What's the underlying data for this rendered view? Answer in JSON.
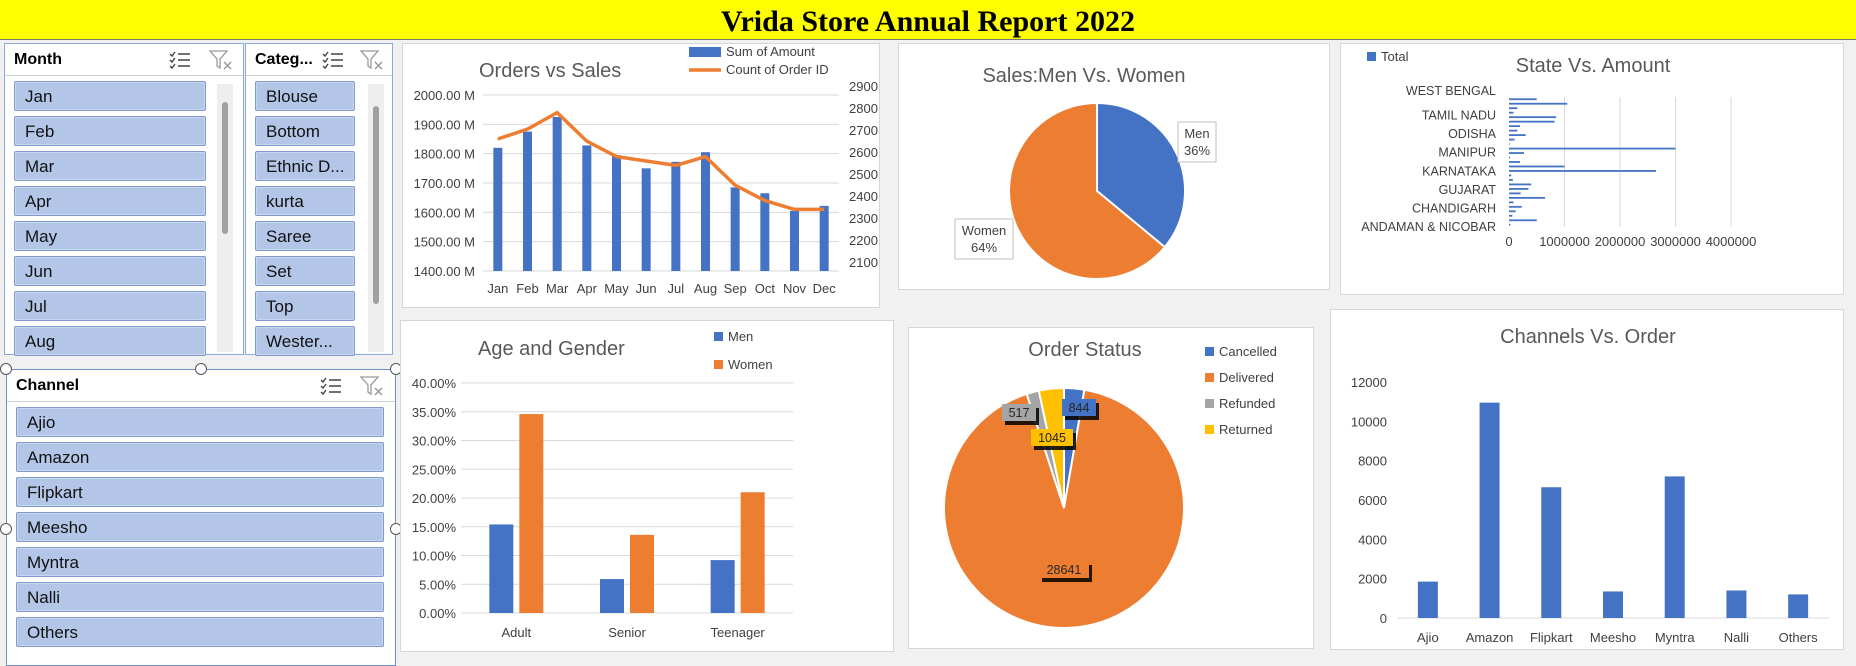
{
  "report": {
    "title": "Vrida Store Annual Report 2022"
  },
  "slicers": {
    "month": {
      "title": "Month",
      "items": [
        "Jan",
        "Feb",
        "Mar",
        "Apr",
        "May",
        "Jun",
        "Jul",
        "Aug"
      ]
    },
    "category": {
      "title": "Categ...",
      "items": [
        "Blouse",
        "Bottom",
        "Ethnic D...",
        "kurta",
        "Saree",
        "Set",
        "Top",
        "Wester..."
      ]
    },
    "channel": {
      "title": "Channel",
      "items": [
        "Ajio",
        "Amazon",
        "Flipkart",
        "Meesho",
        "Myntra",
        "Nalli",
        "Others"
      ]
    }
  },
  "icons": {
    "multi_select": "multi-select-icon",
    "clear_filter": "clear-filter-icon"
  },
  "colors": {
    "banner": "#ffff00",
    "blue": "#4472c4",
    "orange": "#ed7d31",
    "gray": "#a5a5a5",
    "yellow": "#ffc000",
    "slicer_item": "#b4c6e7"
  },
  "chart_data": [
    {
      "id": "orders-vs-sales",
      "type": "bar",
      "title": "Orders vs Sales",
      "categories": [
        "Jan",
        "Feb",
        "Mar",
        "Apr",
        "May",
        "Jun",
        "Jul",
        "Aug",
        "Sep",
        "Oct",
        "Nov",
        "Dec"
      ],
      "series": [
        {
          "name": "Sum of Amount",
          "type": "bar",
          "axis": "left",
          "values": [
            1820,
            1875,
            1925,
            1828,
            1795,
            1750,
            1772,
            1805,
            1685,
            1665,
            1605,
            1622
          ]
        },
        {
          "name": "Count of Order ID",
          "type": "line",
          "axis": "right",
          "values": [
            2700,
            2745,
            2820,
            2690,
            2620,
            2600,
            2580,
            2620,
            2490,
            2420,
            2380,
            2380
          ]
        }
      ],
      "ylim": [
        1400,
        2000
      ],
      "yticks": [
        "2000.00 M",
        "1900.00 M",
        "1800.00 M",
        "1700.00 M",
        "1600.00 M",
        "1500.00 M",
        "1400.00 M"
      ],
      "y2lim": [
        2100,
        2900
      ],
      "y2ticks": [
        "2900",
        "2800",
        "2700",
        "2600",
        "2500",
        "2400",
        "2300",
        "2200",
        "2100"
      ],
      "legend": "top-right"
    },
    {
      "id": "sales-men-women",
      "type": "pie",
      "title": "Sales:Men Vs. Women",
      "slices": [
        {
          "name": "Men",
          "value": 36,
          "label": "36%",
          "color": "#4472c4"
        },
        {
          "name": "Women",
          "value": 64,
          "label": "64%",
          "color": "#ed7d31"
        }
      ]
    },
    {
      "id": "state-vs-amount",
      "type": "bar",
      "orientation": "horizontal",
      "title": "State Vs. Amount",
      "legend_label": "Total",
      "labeled_categories": [
        "WEST BENGAL",
        "TAMIL NADU",
        "ODISHA",
        "MANIPUR",
        "KARNATAKA",
        "GUJARAT",
        "CHANDIGARH",
        "ANDAMAN & NICOBAR"
      ],
      "values_top_to_bottom": [
        500000,
        1050000,
        150000,
        80000,
        850000,
        820000,
        200000,
        150000,
        300000,
        100000,
        5000,
        3000000,
        270000,
        20000,
        200000,
        1000000,
        2650000,
        40000,
        70000,
        400000,
        350000,
        210000,
        650000,
        80000,
        230000,
        120000,
        60000,
        500000,
        25000
      ],
      "xticks": [
        "0",
        "1000000",
        "2000000",
        "3000000",
        "4000000"
      ],
      "xlim": [
        0,
        4000000
      ],
      "legend": "top-left"
    },
    {
      "id": "age-and-gender",
      "type": "bar",
      "title": "Age and Gender",
      "categories": [
        "Adult",
        "Senior",
        "Teenager"
      ],
      "series": [
        {
          "name": "Men",
          "values": [
            15.4,
            5.9,
            9.2
          ]
        },
        {
          "name": "Women",
          "values": [
            34.6,
            13.6,
            21.0
          ]
        }
      ],
      "ylim": [
        0,
        40
      ],
      "yticks": [
        "40.00%",
        "35.00%",
        "30.00%",
        "25.00%",
        "20.00%",
        "15.00%",
        "10.00%",
        "5.00%",
        "0.00%"
      ],
      "legend": "top-right"
    },
    {
      "id": "order-status",
      "type": "pie",
      "title": "Order Status",
      "slices": [
        {
          "name": "Cancelled",
          "value": 844,
          "label": "844",
          "color": "#4472c4"
        },
        {
          "name": "Delivered",
          "value": 28641,
          "label": "28641",
          "color": "#ed7d31"
        },
        {
          "name": "Refunded",
          "value": 517,
          "label": "517",
          "color": "#a5a5a5"
        },
        {
          "name": "Returned",
          "value": 1045,
          "label": "1045",
          "color": "#ffc000"
        }
      ],
      "legend": "right"
    },
    {
      "id": "channels-vs-order",
      "type": "bar",
      "title": "Channels Vs. Order",
      "categories": [
        "Ajio",
        "Amazon",
        "Flipkart",
        "Meesho",
        "Myntra",
        "Nalli",
        "Others"
      ],
      "values": [
        1850,
        10950,
        6650,
        1350,
        7200,
        1400,
        1200
      ],
      "ylim": [
        0,
        12000
      ],
      "yticks": [
        "12000",
        "10000",
        "8000",
        "6000",
        "4000",
        "2000",
        "0"
      ]
    }
  ]
}
